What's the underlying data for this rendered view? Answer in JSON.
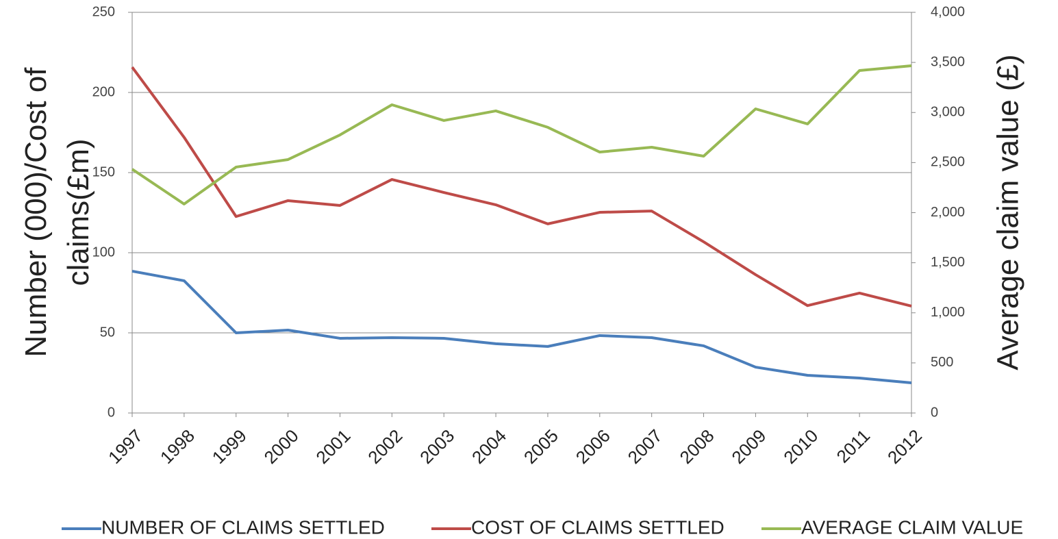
{
  "chart_data": {
    "type": "line",
    "y_label_lines": [
      "Number (000)/Cost of",
      "claims(£m)"
    ],
    "y2_label": "Average claim value (£)",
    "categories": [
      "1997",
      "1998",
      "1999",
      "2000",
      "2001",
      "2002",
      "2003",
      "2004",
      "2005",
      "2006",
      "2007",
      "2008",
      "2009",
      "2010",
      "2011",
      "2012"
    ],
    "series": [
      {
        "name": "NUMBER OF CLAIMS SETTLED",
        "color": "#4a7ebb",
        "values": [
          88.5,
          82.5,
          50,
          51.7,
          46.6,
          47,
          46.6,
          43.2,
          41.5,
          48.3,
          47,
          41.9,
          28.6,
          23.5,
          21.8,
          18.8
        ]
      },
      {
        "name": "COST OF CLAIMS SETTLED",
        "color": "#be4b48",
        "values": [
          215.8,
          172,
          122.6,
          132.5,
          129.5,
          145.7,
          137.6,
          129.9,
          118,
          125.2,
          126,
          106.8,
          86.3,
          67,
          74.8,
          66.7
        ]
      },
      {
        "name": "AVERAGE CLAIM VALUE",
        "color": "#98b954",
        "axis": "y2",
        "values": [
          2434,
          2086,
          2455,
          2530,
          2776,
          3077,
          2920,
          3016,
          2852,
          2605,
          2653,
          2564,
          3036,
          2886,
          3419,
          3467
        ]
      }
    ],
    "ylim": [
      0,
      250
    ],
    "yticks": [
      0,
      50,
      100,
      150,
      200,
      250
    ],
    "y2lim": [
      0,
      4000
    ],
    "y2ticks": [
      0,
      500,
      {
        "value": 1000,
        "label": "1,000"
      },
      {
        "value": 1500,
        "label": "1,500"
      },
      {
        "value": 2000,
        "label": "2,000"
      },
      {
        "value": 2500,
        "label": "2,500"
      },
      {
        "value": 3000,
        "label": "3,000"
      },
      {
        "value": 3500,
        "label": "3,500"
      },
      {
        "value": 4000,
        "label": "4,000"
      }
    ],
    "grid": true,
    "legend": "bottom"
  }
}
